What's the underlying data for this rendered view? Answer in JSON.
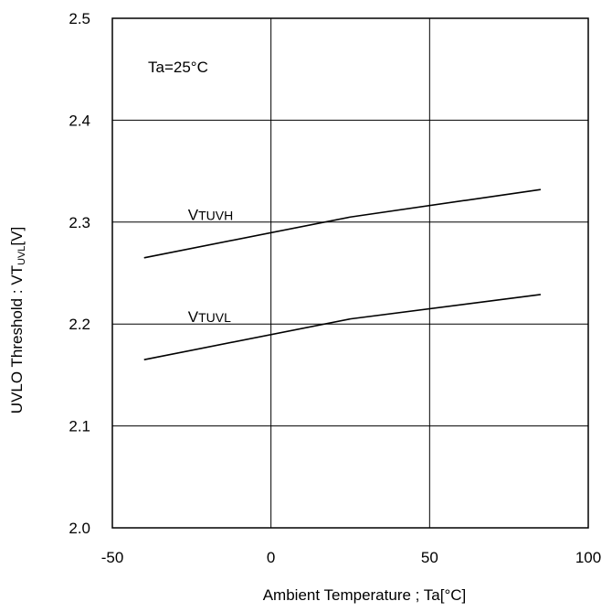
{
  "chart_data": {
    "type": "line",
    "xlabel": "Ambient Temperature ; Ta[°C]",
    "ylabel": {
      "main": "UVLO Threshold : VT",
      "sub": "UVL",
      "suffix": "[V]"
    },
    "xlim": [
      -50,
      100
    ],
    "ylim": [
      2.0,
      2.5
    ],
    "x_ticks": [
      "-50",
      "0",
      "50",
      "100"
    ],
    "y_ticks": [
      "2.0",
      "2.1",
      "2.2",
      "2.3",
      "2.4",
      "2.5"
    ],
    "grid": true,
    "annotation": "Ta=25°C",
    "series": [
      {
        "name": "VTUVH",
        "x": [
          -40,
          25,
          85
        ],
        "y": [
          2.265,
          2.305,
          2.332
        ]
      },
      {
        "name": "VTUVL",
        "x": [
          -40,
          25,
          85
        ],
        "y": [
          2.165,
          2.205,
          2.229
        ]
      }
    ]
  },
  "colors": {
    "line": "#000000",
    "grid": "#000000"
  }
}
